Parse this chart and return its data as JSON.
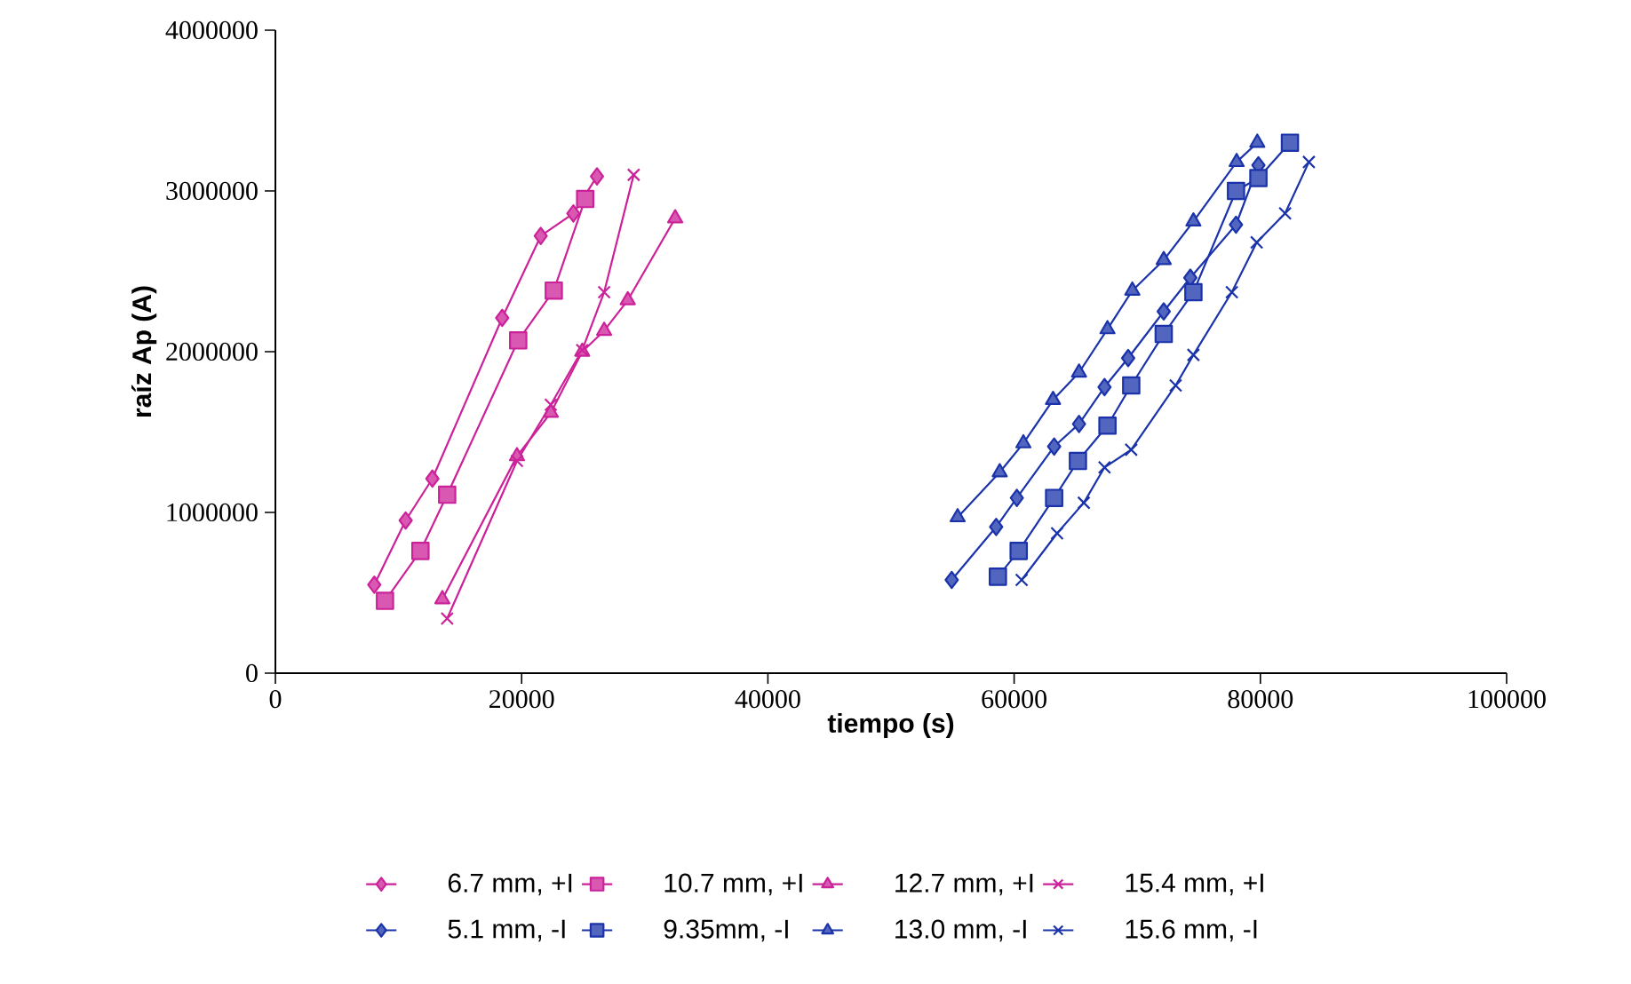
{
  "chart_data": {
    "type": "line",
    "xlabel": "tiempo (s)",
    "ylabel": "raíz Ap (A)",
    "xlim": [
      0,
      100000
    ],
    "xticks": [
      0,
      20000,
      40000,
      60000,
      80000,
      100000
    ],
    "ylim": [
      0,
      4000000
    ],
    "yticks": [
      0,
      1000000,
      2000000,
      3000000,
      4000000
    ],
    "legend": "bottom",
    "line_style": "solid",
    "series": [
      {
        "name": "6.7 mm, +I",
        "color": "#cc2299",
        "marker": "diamond",
        "x": [
          8030,
          10580,
          12750,
          18420,
          21550,
          24200,
          26120
        ],
        "values": [
          550000,
          950000,
          1210000,
          2210000,
          2720000,
          2860000,
          3090000
        ]
      },
      {
        "name": "10.7 mm, +I",
        "color": "#cc2299",
        "marker": "square",
        "x": [
          8900,
          11780,
          13950,
          19720,
          22610,
          25160
        ],
        "values": [
          450000,
          760000,
          1110000,
          2070000,
          2380000,
          2950000
        ]
      },
      {
        "name": "12.7 mm, +I",
        "color": "#cc2299",
        "marker": "triangle",
        "x": [
          13560,
          19620,
          22370,
          24920,
          26700,
          28620,
          32470
        ],
        "values": [
          460000,
          1350000,
          1620000,
          2000000,
          2130000,
          2320000,
          2830000
        ]
      },
      {
        "name": "15.4 mm, +I",
        "color": "#cc2299",
        "marker": "cross",
        "x": [
          13950,
          19620,
          22370,
          24920,
          26700,
          29100
        ],
        "values": [
          340000,
          1320000,
          1670000,
          2010000,
          2370000,
          3100000
        ]
      },
      {
        "name": "5.1 mm, -I",
        "color": "#1a33aa",
        "marker": "diamond",
        "x": [
          54930,
          58540,
          60220,
          63250,
          65270,
          67340,
          69260,
          72150,
          74310,
          78020,
          79840
        ],
        "values": [
          580000,
          910000,
          1090000,
          1410000,
          1550000,
          1780000,
          1960000,
          2250000,
          2460000,
          2790000,
          3160000
        ]
      },
      {
        "name": "9.35mm, -I",
        "color": "#1a33aa",
        "marker": "square",
        "x": [
          58680,
          60370,
          63250,
          65180,
          67580,
          69510,
          72150,
          74560,
          78020,
          79840,
          82400
        ],
        "values": [
          600000,
          760000,
          1090000,
          1320000,
          1540000,
          1790000,
          2110000,
          2370000,
          3000000,
          3080000,
          3300000
        ]
      },
      {
        "name": "13.0 mm, -I",
        "color": "#1a33aa",
        "marker": "triangle",
        "x": [
          55410,
          58830,
          60750,
          63160,
          65270,
          67580,
          69600,
          72150,
          74560,
          78070,
          79750
        ],
        "values": [
          970000,
          1250000,
          1430000,
          1700000,
          1870000,
          2140000,
          2380000,
          2570000,
          2810000,
          3180000,
          3300000
        ]
      },
      {
        "name": "15.6 mm, -I",
        "color": "#1a33aa",
        "marker": "cross",
        "x": [
          60610,
          63490,
          65660,
          67340,
          69510,
          73120,
          74560,
          77680,
          79700,
          82010,
          83940
        ],
        "values": [
          580000,
          870000,
          1060000,
          1280000,
          1390000,
          1790000,
          1980000,
          2370000,
          2680000,
          2860000,
          3180000
        ]
      }
    ]
  }
}
